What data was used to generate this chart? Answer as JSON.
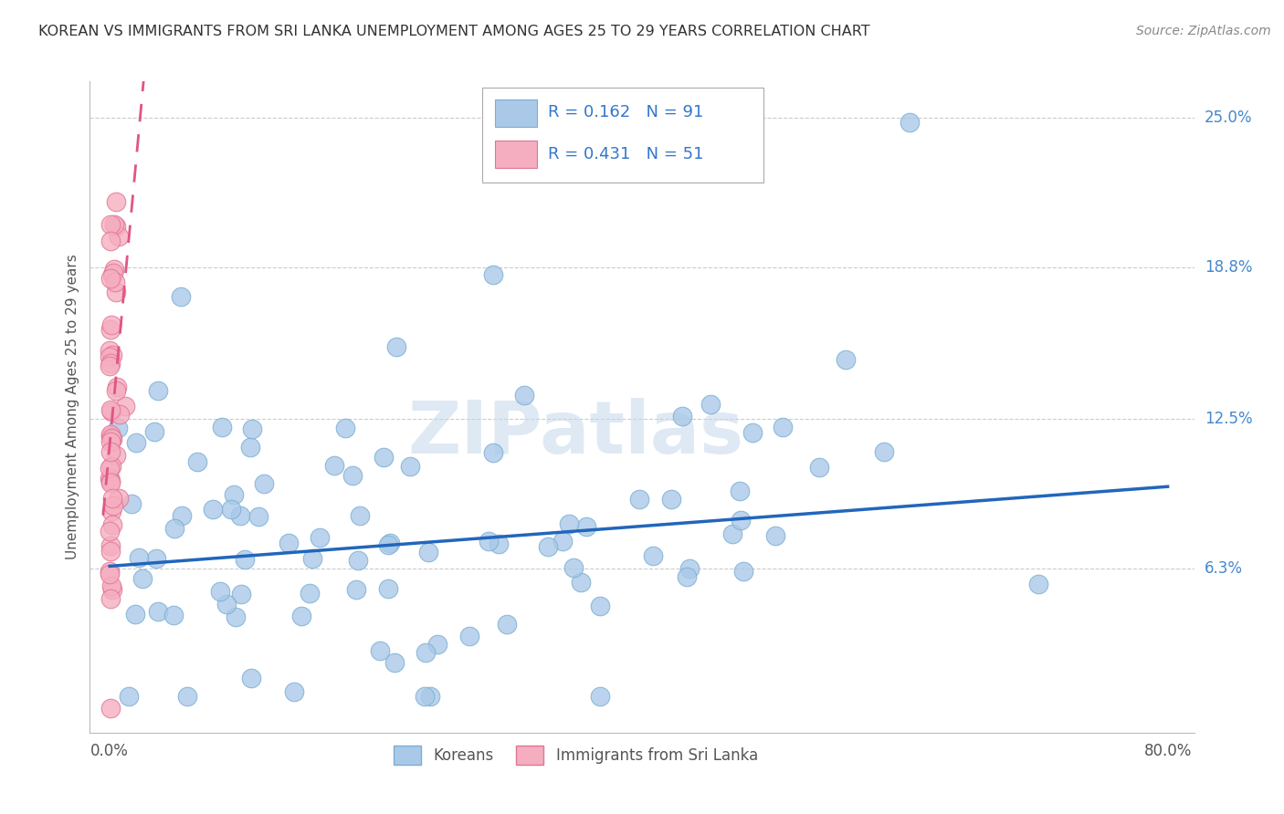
{
  "title": "KOREAN VS IMMIGRANTS FROM SRI LANKA UNEMPLOYMENT AMONG AGES 25 TO 29 YEARS CORRELATION CHART",
  "source": "Source: ZipAtlas.com",
  "ylabel": "Unemployment Among Ages 25 to 29 years",
  "xlim": [
    -0.015,
    0.82
  ],
  "ylim": [
    -0.005,
    0.265
  ],
  "ytick_positions": [
    0.063,
    0.125,
    0.188,
    0.25
  ],
  "ytick_labels": [
    "6.3%",
    "12.5%",
    "18.8%",
    "25.0%"
  ],
  "korean_R": 0.162,
  "korean_N": 91,
  "srilanka_R": 0.431,
  "srilanka_N": 51,
  "korean_color": "#aac9e8",
  "srilanka_color": "#f5aec0",
  "korean_edge_color": "#7aafd4",
  "srilanka_edge_color": "#e07595",
  "trend_korean_color": "#2266bb",
  "trend_srilanka_color": "#e05585",
  "watermark": "ZIPatlas",
  "watermark_color": "#c5d8ec"
}
